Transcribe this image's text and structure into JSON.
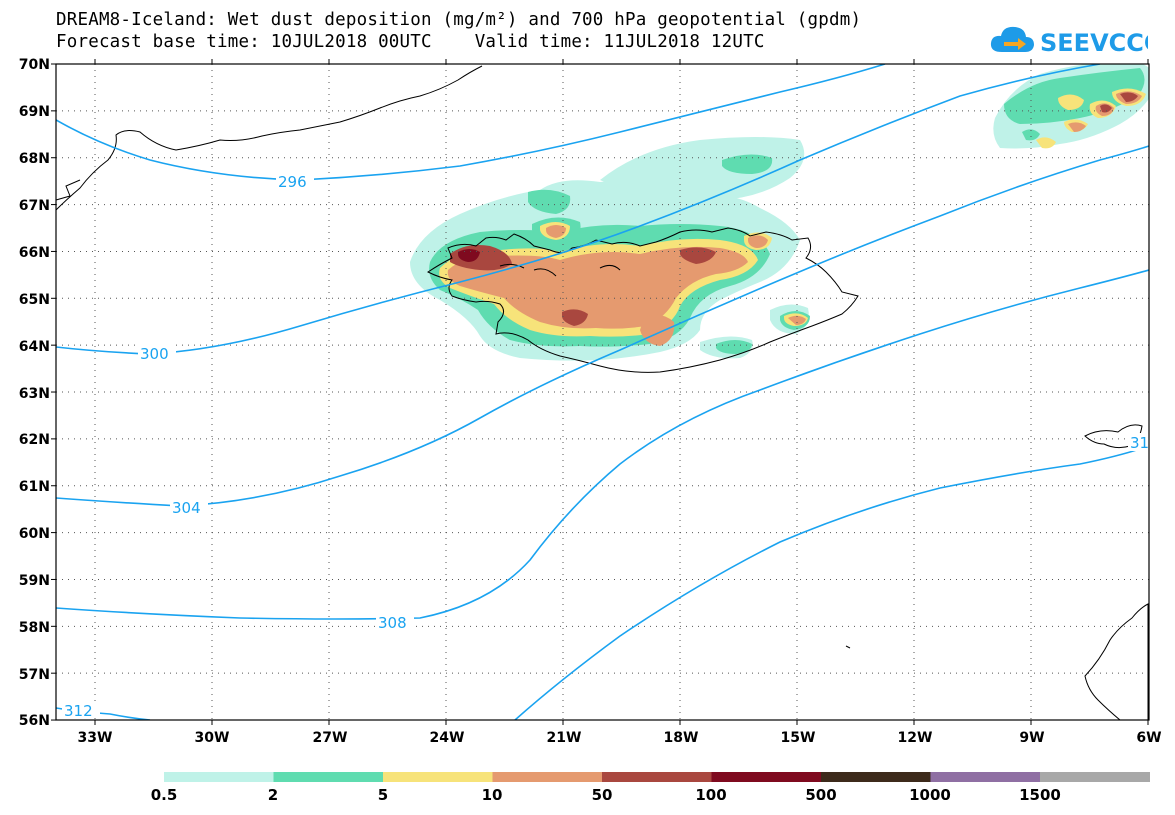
{
  "title": {
    "line1": "DREAM8-Iceland: Wet dust deposition (mg/m²) and 700 hPa geopotential (gpdm)",
    "line2": "Forecast base time: 10JUL2018 00UTC    Valid time: 11JUL2018 12UTC"
  },
  "logo": {
    "text": "SEEVCCC",
    "icon": "cloud-arrow-icon",
    "color": "#1e9be8"
  },
  "axes": {
    "lat_labels": [
      "70N",
      "69N",
      "68N",
      "67N",
      "66N",
      "65N",
      "64N",
      "63N",
      "62N",
      "61N",
      "60N",
      "59N",
      "58N",
      "57N",
      "56N"
    ],
    "lon_labels": [
      "33W",
      "30W",
      "27W",
      "24W",
      "21W",
      "18W",
      "15W",
      "12W",
      "9W",
      "6W"
    ]
  },
  "contour_labels": [
    "296",
    "300",
    "304",
    "308",
    "312",
    "31"
  ],
  "colorbar": {
    "labels": [
      "0.5",
      "2",
      "5",
      "10",
      "50",
      "100",
      "500",
      "1000",
      "1500"
    ],
    "colors": [
      "#bff2e8",
      "#5fdcb0",
      "#f7e37a",
      "#e59a6f",
      "#a9473f",
      "#7f0a1f",
      "#3d2a1b",
      "#8f6fa3",
      "#a8a8a8"
    ]
  },
  "styles": {
    "contour_color": "#1aa3f0",
    "grid_style": "dotted",
    "coast_color": "#000000"
  }
}
